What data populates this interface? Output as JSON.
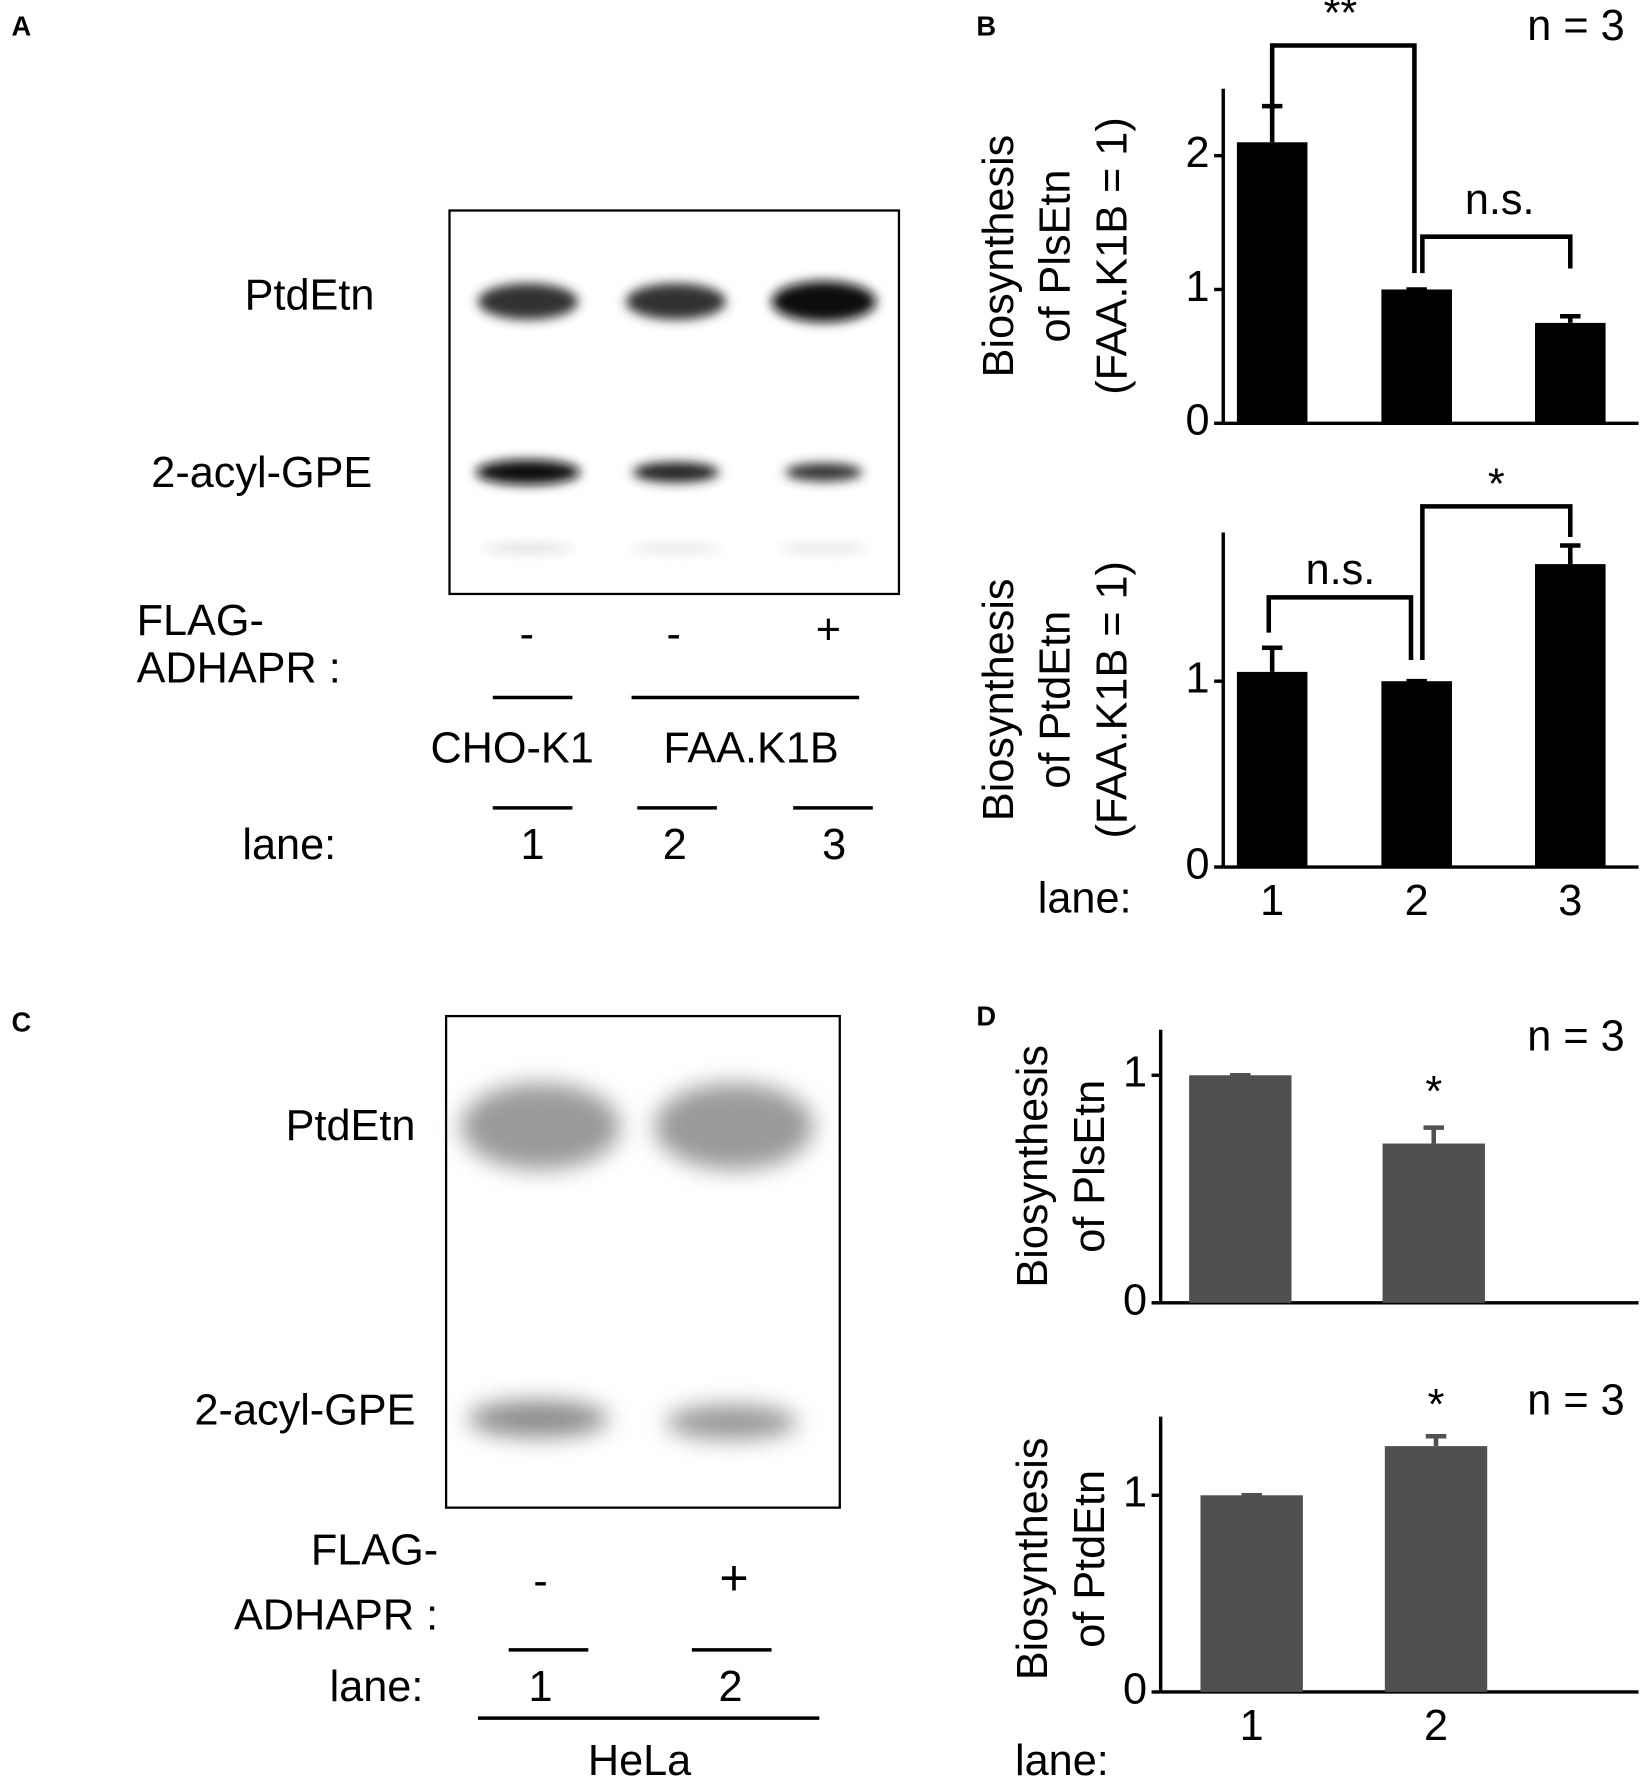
{
  "blot_a": {
    "panel": "A",
    "bands": [
      "PtdEtn",
      "2-acyl-GPE"
    ],
    "construct": [
      "FLAG-",
      "ADHAPR :"
    ],
    "treatment": [
      "-",
      "-",
      "+"
    ],
    "cells": [
      "CHO-K1",
      "FAA.K1B"
    ],
    "lane_label": "lane:",
    "lanes": [
      "1",
      "2",
      "3"
    ]
  },
  "blot_c": {
    "panel": "C",
    "bands": [
      "PtdEtn",
      "2-acyl-GPE"
    ],
    "construct": [
      "FLAG-",
      "ADHAPR :"
    ],
    "treatment": [
      "-",
      "+"
    ],
    "lane_label": "lane:",
    "lanes": [
      "1",
      "2"
    ],
    "cells": [
      "HeLa"
    ]
  },
  "chart_data": [
    {
      "type": "bar",
      "panel": "B",
      "note": "n = 3",
      "ylabel": [
        "Biosynthesis",
        "of PlsEtn",
        "(FAA.K1B = 1)"
      ],
      "categories": [
        null,
        null,
        null
      ],
      "values": [
        2.1,
        1,
        0.75
      ],
      "errors": [
        0.27,
        0,
        0.05
      ],
      "color": "#000000",
      "ylim": [
        0,
        2.5
      ],
      "yticks": [
        0,
        1,
        2
      ],
      "annotations": [
        "**",
        "n.s."
      ]
    },
    {
      "type": "bar",
      "xlabel": "lane:",
      "ylabel": [
        "Biosynthesis",
        "of PtdEtn",
        "(FAA.K1B = 1)"
      ],
      "categories": [
        "1",
        "2",
        "3"
      ],
      "values": [
        1.05,
        1,
        1.63
      ],
      "errors": [
        0.13,
        0,
        0.1
      ],
      "color": "#000000",
      "ylim": [
        0,
        1.8
      ],
      "yticks": [
        0,
        1
      ],
      "annotations": [
        "n.s.",
        "*"
      ]
    },
    {
      "type": "bar",
      "panel": "D",
      "note": "n = 3",
      "ylabel": [
        "Biosynthesis",
        "of PlsEtn"
      ],
      "categories": [
        null,
        null
      ],
      "values": [
        1,
        0.7
      ],
      "errors": [
        0,
        0.07
      ],
      "color": "#505050",
      "ylim": [
        0,
        1.2
      ],
      "yticks": [
        0,
        1
      ],
      "annotations": [
        "*"
      ]
    },
    {
      "type": "bar",
      "note": "n = 3",
      "xlabel": "lane:",
      "ylabel": [
        "Biosynthesis",
        "of PtdEtn"
      ],
      "categories": [
        "1",
        "2"
      ],
      "values": [
        1,
        1.25
      ],
      "errors": [
        0,
        0.05
      ],
      "color": "#505050",
      "ylim": [
        0,
        1.4
      ],
      "yticks": [
        0,
        1
      ],
      "annotations": [
        "*"
      ]
    }
  ]
}
